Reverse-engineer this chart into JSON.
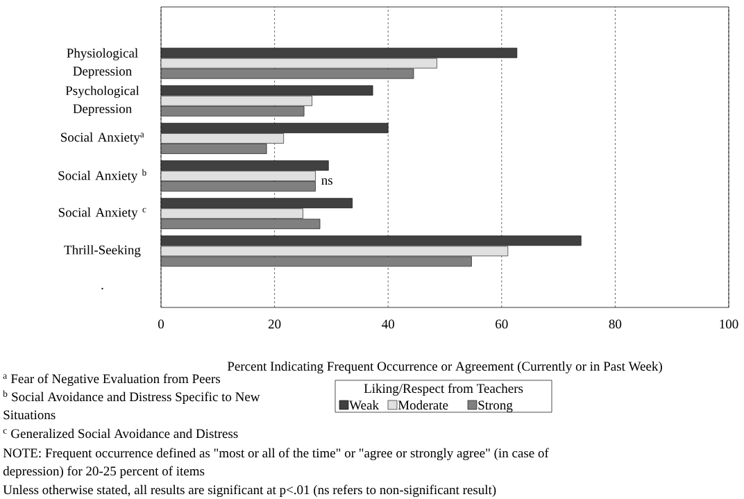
{
  "chart_data": {
    "type": "bar",
    "orientation": "horizontal",
    "categories": [
      null,
      "Physiological Depression",
      "Psychological Depression",
      "Social Anxiety$^{a}$",
      "Social Anxiety $^{b}$",
      "Social Anxiety $^{c}$",
      "Thrill-Seeking",
      "."
    ],
    "series": [
      {
        "name": "Weak",
        "color": "#404040",
        "values": [
          null,
          62.7,
          37.3,
          40.0,
          29.5,
          33.7,
          74.0,
          null
        ]
      },
      {
        "name": "Moderate",
        "color": "#e0e0e0",
        "values": [
          null,
          48.6,
          26.6,
          21.6,
          27.2,
          25.0,
          61.1,
          null
        ]
      },
      {
        "name": "Strong",
        "color": "#808080",
        "values": [
          null,
          44.5,
          25.2,
          18.6,
          27.2,
          28.0,
          54.7,
          null
        ]
      }
    ],
    "xlim": [
      0,
      100
    ],
    "xticks": [
      0,
      20,
      40,
      60,
      80,
      100
    ],
    "grid": "x",
    "xlabel": "Percent Indicating Frequent Occurrence or Agreement (Currently or in Past Week)",
    "legend_title": "Liking/Respect from Teachers",
    "legend": "bottom",
    "annotations": [
      {
        "text": "ns",
        "x": 27.2,
        "y": "Social Anxiety $^{b}$"
      },
      "$^{a}$ Fear of Negative Evaluation from Peers",
      "$^{b}$ Social Avoidance and Distress Specific to New Situations",
      "$^{c}$ Generalized Social Avoidance and Distress",
      "NOTE:  Frequent occurrence defined as \"most or all of the time\" or \"agree or strongly agree\" (in case of depression) for 20-25 percent of items",
      "Unless otherwise stated, all results are significant at p<.01 (ns refers to non-significant result)"
    ]
  }
}
